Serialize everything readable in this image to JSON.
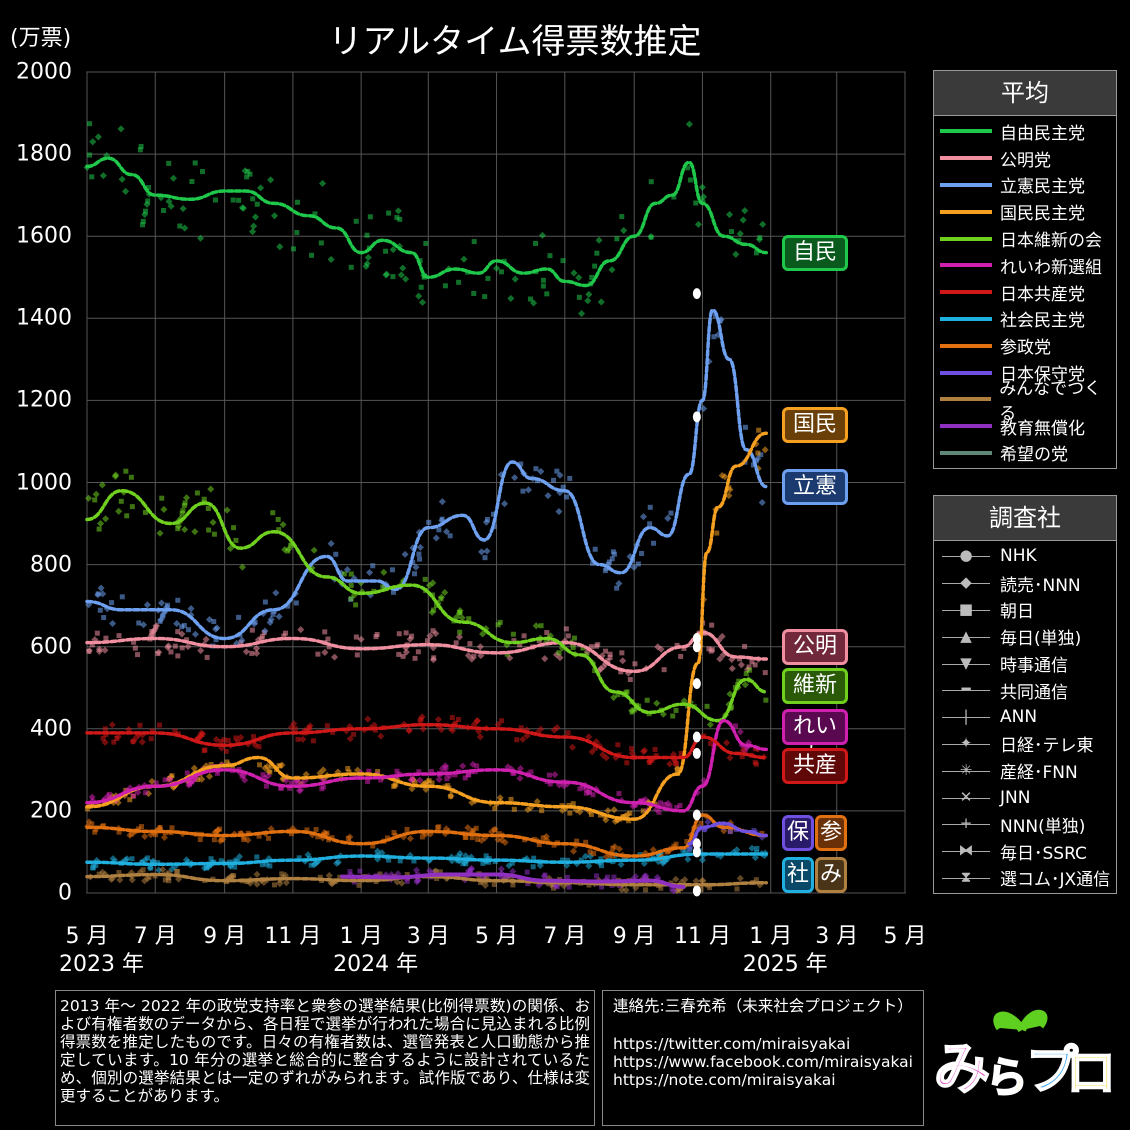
{
  "title": "リアルタイム得票数推定",
  "unit_label": "(万票)",
  "y_ticks": [
    "0",
    "200",
    "400",
    "600",
    "800",
    "1000",
    "1200",
    "1400",
    "1600",
    "1800",
    "2000"
  ],
  "x_ticks": [
    "5 月",
    "7 月",
    "9 月",
    "11 月",
    "1 月",
    "3 月",
    "5 月",
    "7 月",
    "9 月",
    "11 月",
    "1 月",
    "3 月",
    "5 月"
  ],
  "year_labels": [
    "2023 年",
    "2024 年",
    "2025 年"
  ],
  "legend_avg": {
    "header": "平均",
    "items": [
      {
        "name": "自由民主党",
        "color": "#1fc84a"
      },
      {
        "name": "公明党",
        "color": "#f08fa0"
      },
      {
        "name": "立憲民主党",
        "color": "#6ea0f0"
      },
      {
        "name": "国民民主党",
        "color": "#f5a020"
      },
      {
        "name": "日本維新の会",
        "color": "#70d020"
      },
      {
        "name": "れいわ新選組",
        "color": "#d020b0"
      },
      {
        "name": "日本共産党",
        "color": "#d01818"
      },
      {
        "name": "社会民主党",
        "color": "#20b0e0"
      },
      {
        "name": "参政党",
        "color": "#e07010"
      },
      {
        "name": "日本保守党",
        "color": "#7050e0"
      },
      {
        "name": "みんなでつくる",
        "color": "#b08040"
      },
      {
        "name": "教育無償化",
        "color": "#9030c0"
      },
      {
        "name": "希望の党",
        "color": "#608878"
      }
    ]
  },
  "legend_survey": {
    "header": "調査社",
    "items": [
      {
        "name": "NHK",
        "marker": "●"
      },
      {
        "name": "読売･NNN",
        "marker": "◆"
      },
      {
        "name": "朝日",
        "marker": "■"
      },
      {
        "name": "毎日(単独)",
        "marker": "▲"
      },
      {
        "name": "時事通信",
        "marker": "▼"
      },
      {
        "name": "共同通信",
        "marker": "━"
      },
      {
        "name": "ANN",
        "marker": "|"
      },
      {
        "name": "日経･テレ東",
        "marker": "✦"
      },
      {
        "name": "産経･FNN",
        "marker": "✳"
      },
      {
        "name": "JNN",
        "marker": "✕"
      },
      {
        "name": "NNN(単独)",
        "marker": "+"
      },
      {
        "name": "毎日･SSRC",
        "marker": "⧓"
      },
      {
        "name": "選コム･JX通信",
        "marker": "⧗"
      }
    ]
  },
  "party_labels": [
    {
      "text": "自民",
      "color": "#1fc84a",
      "bg": "#0a5a1e",
      "value": 1560
    },
    {
      "text": "国民",
      "color": "#f5a020",
      "bg": "#6a4008",
      "value": 1140
    },
    {
      "text": "立憲",
      "color": "#6ea0f0",
      "bg": "#1a3a70",
      "value": 990
    },
    {
      "text": "公明",
      "color": "#f08fa0",
      "bg": "#70283a",
      "value": 600
    },
    {
      "text": "維新",
      "color": "#70d020",
      "bg": "#2a5a08",
      "value": 505
    },
    {
      "text": "れいわ",
      "color": "#d020b0",
      "bg": "#5a0850",
      "value": 405
    },
    {
      "text": "共産",
      "color": "#d01818",
      "bg": "#600808",
      "value": 310
    },
    {
      "text": "保",
      "color": "#7050e0",
      "bg": "#2a1a6a",
      "value": 145
    },
    {
      "text": "参",
      "color": "#e07010",
      "bg": "#6a3008",
      "value": 145
    },
    {
      "text": "社",
      "color": "#20b0e0",
      "bg": "#0a4a68",
      "value": 45
    },
    {
      "text": "み",
      "color": "#b08040",
      "bg": "#4a3418",
      "value": 45
    }
  ],
  "note": "2013 年～ 2022 年の政党支持率と衆参の選挙結果(比例得票数)の関係、および有権者数のデータから、各日程で選挙が行われた場合に見込まれる比例得票数を推定したものです。日々の有権者数は、選管発表と人口動態から推定しています。10 年分の選挙と総合的に整合するように設計されているため、個別の選挙結果とは一定のずれがみられます。試作版であり、仕様は変更することがあります。",
  "contact": {
    "title": "連絡先:三春充希（未来社会プロジェクト）",
    "links": [
      "https://twitter.com/miraisyakai",
      "https://www.facebook.com/miraisyakai",
      "https://note.com/miraisyakai"
    ]
  },
  "logo_text": "みらプロ",
  "chart_data": {
    "type": "line",
    "title": "リアルタイム得票数推定",
    "ylabel": "(万票)",
    "ylim": [
      0,
      2000
    ],
    "xlim": [
      "2023-05-01",
      "2025-05-01"
    ],
    "grid": true,
    "legend_position": "right",
    "series": [
      {
        "name": "自由民主党",
        "color": "#1fc84a",
        "x": [
          "2023-05-01",
          "2023-05-20",
          "2023-06-10",
          "2023-07-01",
          "2023-08-01",
          "2023-09-01",
          "2023-09-20",
          "2023-10-15",
          "2023-11-15",
          "2023-12-10",
          "2024-01-01",
          "2024-01-20",
          "2024-02-15",
          "2024-03-01",
          "2024-03-25",
          "2024-04-15",
          "2024-05-01",
          "2024-05-25",
          "2024-06-15",
          "2024-07-01",
          "2024-07-20",
          "2024-08-10",
          "2024-09-01",
          "2024-09-20",
          "2024-10-05",
          "2024-10-20",
          "2024-11-01",
          "2024-11-20",
          "2024-12-10",
          "2024-12-28"
        ],
        "y": [
          1770,
          1790,
          1750,
          1700,
          1690,
          1710,
          1710,
          1680,
          1650,
          1620,
          1560,
          1590,
          1560,
          1500,
          1520,
          1510,
          1540,
          1510,
          1520,
          1490,
          1480,
          1540,
          1600,
          1680,
          1700,
          1780,
          1680,
          1600,
          1580,
          1560
        ]
      },
      {
        "name": "公明党",
        "color": "#f08fa0",
        "x": [
          "2023-05-01",
          "2023-07-01",
          "2023-09-01",
          "2023-11-01",
          "2024-01-01",
          "2024-03-01",
          "2024-05-01",
          "2024-07-01",
          "2024-09-01",
          "2024-10-15",
          "2024-11-01",
          "2024-12-01",
          "2024-12-28"
        ],
        "y": [
          610,
          620,
          600,
          620,
          595,
          605,
          585,
          610,
          540,
          600,
          635,
          575,
          570
        ]
      },
      {
        "name": "立憲民主党",
        "color": "#6ea0f0",
        "x": [
          "2023-05-01",
          "2023-06-01",
          "2023-07-15",
          "2023-09-01",
          "2023-10-15",
          "2023-12-01",
          "2023-12-20",
          "2024-01-15",
          "2024-02-01",
          "2024-03-01",
          "2024-04-01",
          "2024-04-20",
          "2024-05-15",
          "2024-06-01",
          "2024-07-01",
          "2024-08-01",
          "2024-08-20",
          "2024-09-15",
          "2024-10-01",
          "2024-10-20",
          "2024-11-01",
          "2024-11-10",
          "2024-11-25",
          "2024-12-10",
          "2024-12-28"
        ],
        "y": [
          710,
          690,
          690,
          620,
          690,
          820,
          760,
          760,
          740,
          890,
          920,
          860,
          1050,
          1010,
          980,
          800,
          780,
          890,
          870,
          1020,
          1200,
          1420,
          1300,
          1080,
          990
        ]
      },
      {
        "name": "国民民主党",
        "color": "#f5a020",
        "x": [
          "2023-05-01",
          "2023-07-01",
          "2023-09-01",
          "2023-10-01",
          "2023-11-01",
          "2024-01-01",
          "2024-03-01",
          "2024-05-01",
          "2024-07-01",
          "2024-09-01",
          "2024-10-10",
          "2024-10-28",
          "2024-11-05",
          "2024-11-15",
          "2024-12-01",
          "2024-12-28"
        ],
        "y": [
          210,
          260,
          310,
          330,
          280,
          290,
          260,
          220,
          210,
          180,
          290,
          560,
          830,
          940,
          1040,
          1120
        ]
      },
      {
        "name": "日本維新の会",
        "color": "#70d020",
        "x": [
          "2023-05-01",
          "2023-06-01",
          "2023-07-15",
          "2023-08-15",
          "2023-09-15",
          "2023-10-15",
          "2023-12-01",
          "2024-01-01",
          "2024-02-15",
          "2024-04-01",
          "2024-05-15",
          "2024-06-15",
          "2024-07-15",
          "2024-08-15",
          "2024-09-15",
          "2024-10-15",
          "2024-11-15",
          "2024-12-10",
          "2024-12-28"
        ],
        "y": [
          910,
          980,
          900,
          950,
          840,
          880,
          770,
          730,
          750,
          660,
          610,
          620,
          580,
          490,
          440,
          460,
          420,
          520,
          490
        ]
      },
      {
        "name": "れいわ新選組",
        "color": "#d020b0",
        "x": [
          "2023-05-01",
          "2023-07-01",
          "2023-09-01",
          "2023-11-01",
          "2024-01-01",
          "2024-03-01",
          "2024-05-01",
          "2024-07-01",
          "2024-09-01",
          "2024-10-15",
          "2024-11-01",
          "2024-11-20",
          "2024-12-10",
          "2024-12-28"
        ],
        "y": [
          220,
          260,
          300,
          260,
          280,
          290,
          300,
          270,
          220,
          200,
          260,
          420,
          360,
          350
        ]
      },
      {
        "name": "日本共産党",
        "color": "#d01818",
        "x": [
          "2023-05-01",
          "2023-07-01",
          "2023-09-01",
          "2023-11-01",
          "2024-01-01",
          "2024-03-01",
          "2024-05-01",
          "2024-07-01",
          "2024-09-01",
          "2024-10-15",
          "2024-11-01",
          "2024-12-01",
          "2024-12-28"
        ],
        "y": [
          390,
          390,
          360,
          390,
          400,
          410,
          400,
          380,
          330,
          330,
          380,
          340,
          330
        ]
      },
      {
        "name": "社会民主党",
        "color": "#20b0e0",
        "x": [
          "2023-05-01",
          "2023-07-01",
          "2023-09-01",
          "2023-11-01",
          "2024-01-01",
          "2024-03-01",
          "2024-05-01",
          "2024-07-01",
          "2024-09-01",
          "2024-11-01",
          "2024-12-28"
        ],
        "y": [
          75,
          70,
          72,
          80,
          90,
          85,
          80,
          75,
          80,
          95,
          95
        ]
      },
      {
        "name": "参政党",
        "color": "#e07010",
        "x": [
          "2023-05-01",
          "2023-07-01",
          "2023-09-01",
          "2023-11-01",
          "2024-01-01",
          "2024-03-01",
          "2024-05-01",
          "2024-07-01",
          "2024-09-01",
          "2024-10-15",
          "2024-11-01",
          "2024-11-20",
          "2024-12-28"
        ],
        "y": [
          160,
          150,
          140,
          150,
          120,
          150,
          140,
          120,
          90,
          110,
          190,
          160,
          140
        ]
      },
      {
        "name": "日本保守党",
        "color": "#7050e0",
        "x": [
          "2024-10-20",
          "2024-11-01",
          "2024-11-20",
          "2024-12-10",
          "2024-12-28"
        ],
        "y": [
          120,
          160,
          170,
          150,
          140
        ]
      },
      {
        "name": "みんなでつくる",
        "color": "#b08040",
        "x": [
          "2023-05-01",
          "2023-07-01",
          "2023-09-01",
          "2023-11-01",
          "2024-01-01",
          "2024-03-01",
          "2024-05-01",
          "2024-07-01",
          "2024-09-01",
          "2024-11-01",
          "2024-12-28"
        ],
        "y": [
          40,
          45,
          30,
          35,
          30,
          40,
          30,
          25,
          20,
          20,
          25
        ]
      },
      {
        "name": "教育無償化",
        "color": "#9030c0",
        "x": [
          "2023-12-15",
          "2024-02-01",
          "2024-03-15",
          "2024-05-01",
          "2024-06-15",
          "2024-08-01",
          "2024-09-15",
          "2024-10-15"
        ],
        "y": [
          40,
          38,
          45,
          45,
          30,
          28,
          30,
          15
        ]
      },
      {
        "name": "希望の党",
        "color": "#608878",
        "x": [],
        "y": []
      }
    ],
    "election_markers": {
      "date": "2024-10-27",
      "values": [
        1460,
        1160,
        620,
        600,
        510,
        380,
        340,
        190,
        120,
        100,
        5
      ]
    }
  }
}
